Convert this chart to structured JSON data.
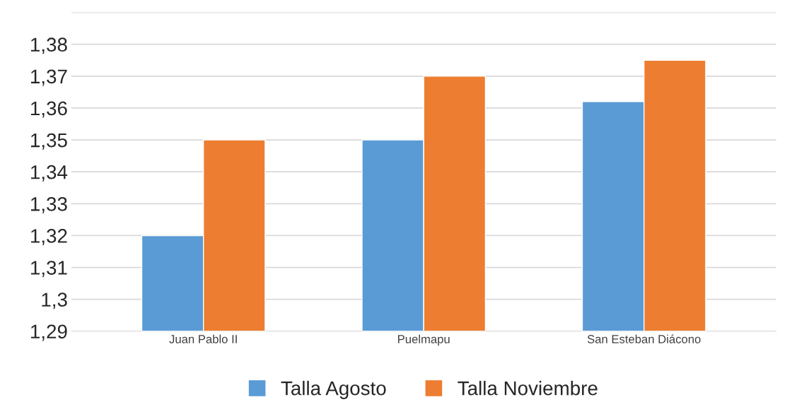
{
  "chart_data": {
    "type": "bar",
    "categories": [
      "Juan Pablo II",
      "Puelmapu",
      "San Esteban Diácono"
    ],
    "series": [
      {
        "name": "Talla Agosto",
        "color": "#5b9bd5",
        "values": [
          1.32,
          1.35,
          1.362
        ]
      },
      {
        "name": "Talla Noviembre",
        "color": "#ed7d31",
        "values": [
          1.35,
          1.37,
          1.375
        ]
      }
    ],
    "ylim": [
      1.29,
      1.39
    ],
    "yticks": [
      {
        "value": 1.29,
        "label": "1,29"
      },
      {
        "value": 1.3,
        "label": "1,3"
      },
      {
        "value": 1.31,
        "label": "1,31"
      },
      {
        "value": 1.32,
        "label": "1,32"
      },
      {
        "value": 1.33,
        "label": "1,33"
      },
      {
        "value": 1.34,
        "label": "1,34"
      },
      {
        "value": 1.35,
        "label": "1,35"
      },
      {
        "value": 1.36,
        "label": "1,36"
      },
      {
        "value": 1.37,
        "label": "1,37"
      },
      {
        "value": 1.38,
        "label": "1,38"
      },
      {
        "value": 1.39,
        "label": null
      }
    ],
    "grid": "y",
    "legend": "bottom"
  }
}
